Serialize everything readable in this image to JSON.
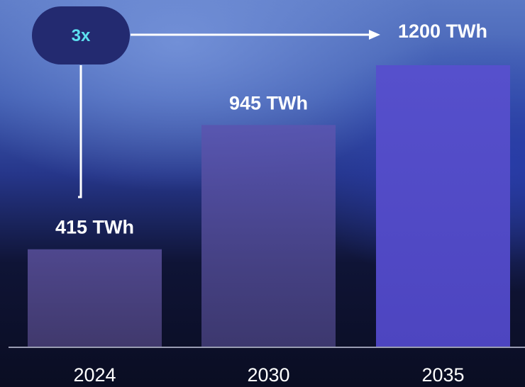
{
  "chart_data": {
    "type": "bar",
    "categories": [
      "2024",
      "2030",
      "2035"
    ],
    "values": [
      415,
      945,
      1200
    ],
    "data_labels": [
      "415 TWh",
      "945 TWh",
      "1200 TWh"
    ],
    "unit": "TWh",
    "title": "",
    "xlabel": "",
    "ylabel": "",
    "ylim": [
      0,
      1200
    ],
    "grid": false,
    "legend": "none",
    "annotation": {
      "label": "3x",
      "from_category": "2024",
      "to_category": "2035"
    },
    "colors": {
      "bar_2024": "#4a3f85",
      "bar_2030": "#4a3f8a",
      "bar_2035": "#5048c8",
      "badge_fill": "#232a70",
      "badge_text": "#5de0f0",
      "axis": "#c8cce0"
    }
  }
}
